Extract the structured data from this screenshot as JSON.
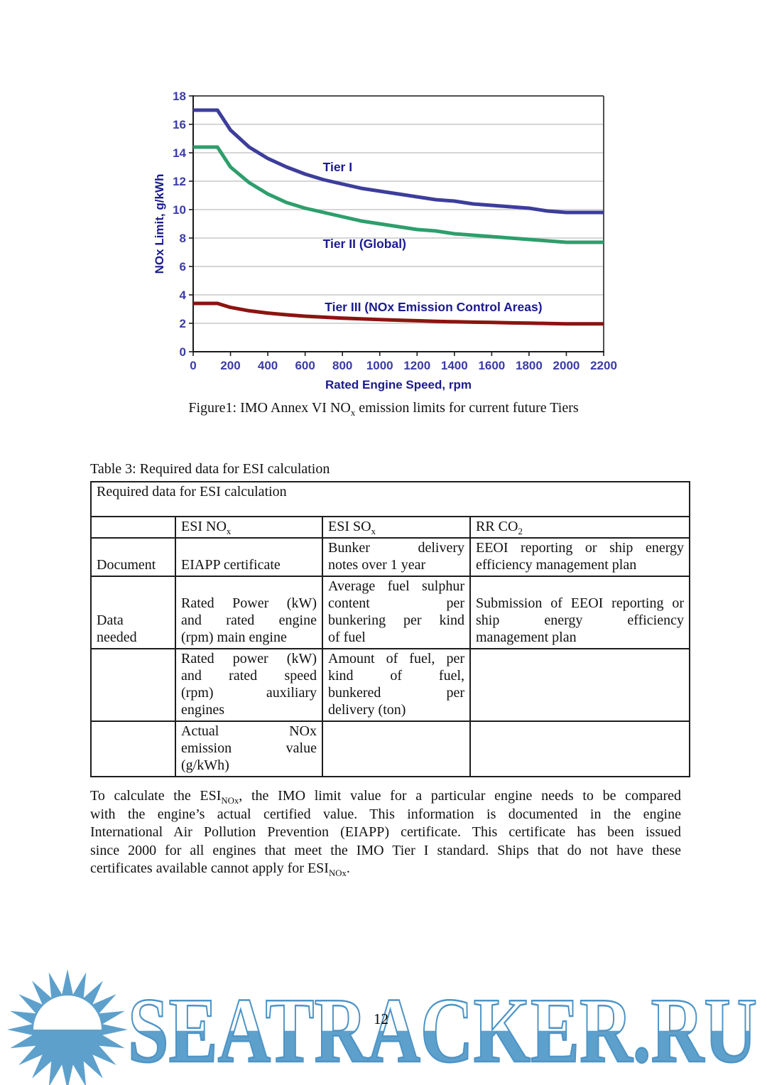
{
  "page": {
    "number": "12"
  },
  "figure": {
    "caption": {
      "pre": "Figure1: IMO Annex VI NO",
      "sub": "x",
      "post": " emission limits for current future Tiers"
    }
  },
  "chart_data": {
    "type": "line",
    "title": "",
    "xlabel": "Rated Engine Speed, rpm",
    "ylabel": "NOx Limit, g/kWh",
    "xlim": [
      0,
      2200
    ],
    "ylim": [
      0,
      18
    ],
    "x_ticks": [
      0,
      200,
      400,
      600,
      800,
      1000,
      1200,
      1400,
      1600,
      1800,
      2000,
      2200
    ],
    "y_ticks": [
      0,
      2,
      4,
      6,
      8,
      10,
      12,
      14,
      16,
      18
    ],
    "grid": "horizontal",
    "legend": "none",
    "series": [
      {
        "name": "Tier I",
        "color": "#3D3D9C",
        "points": [
          [
            0,
            17
          ],
          [
            130,
            17
          ],
          [
            200,
            15.6
          ],
          [
            300,
            14.4
          ],
          [
            400,
            13.6
          ],
          [
            500,
            13.0
          ],
          [
            600,
            12.5
          ],
          [
            700,
            12.1
          ],
          [
            800,
            11.8
          ],
          [
            900,
            11.5
          ],
          [
            1000,
            11.3
          ],
          [
            1100,
            11.1
          ],
          [
            1200,
            10.9
          ],
          [
            1300,
            10.7
          ],
          [
            1400,
            10.6
          ],
          [
            1500,
            10.4
          ],
          [
            1600,
            10.3
          ],
          [
            1700,
            10.2
          ],
          [
            1800,
            10.1
          ],
          [
            1900,
            9.9
          ],
          [
            2000,
            9.8
          ],
          [
            2200,
            9.8
          ]
        ]
      },
      {
        "name": "Tier II (Global)",
        "color": "#2E9E6C",
        "points": [
          [
            0,
            14.4
          ],
          [
            130,
            14.4
          ],
          [
            200,
            13.0
          ],
          [
            300,
            11.9
          ],
          [
            400,
            11.1
          ],
          [
            500,
            10.5
          ],
          [
            600,
            10.1
          ],
          [
            700,
            9.8
          ],
          [
            800,
            9.5
          ],
          [
            900,
            9.2
          ],
          [
            1000,
            9.0
          ],
          [
            1100,
            8.8
          ],
          [
            1200,
            8.6
          ],
          [
            1300,
            8.5
          ],
          [
            1400,
            8.3
          ],
          [
            1500,
            8.2
          ],
          [
            1600,
            8.1
          ],
          [
            1700,
            8.0
          ],
          [
            1800,
            7.9
          ],
          [
            1900,
            7.8
          ],
          [
            2000,
            7.7
          ],
          [
            2200,
            7.7
          ]
        ]
      },
      {
        "name": "Tier III (NOx Emission Control Areas)",
        "color": "#8B1410",
        "points": [
          [
            0,
            3.4
          ],
          [
            130,
            3.4
          ],
          [
            200,
            3.12
          ],
          [
            300,
            2.88
          ],
          [
            400,
            2.72
          ],
          [
            500,
            2.6
          ],
          [
            600,
            2.5
          ],
          [
            700,
            2.43
          ],
          [
            800,
            2.36
          ],
          [
            900,
            2.31
          ],
          [
            1000,
            2.26
          ],
          [
            1100,
            2.22
          ],
          [
            1200,
            2.18
          ],
          [
            1300,
            2.14
          ],
          [
            1400,
            2.11
          ],
          [
            1500,
            2.08
          ],
          [
            1600,
            2.06
          ],
          [
            1700,
            2.03
          ],
          [
            1800,
            2.01
          ],
          [
            1900,
            1.99
          ],
          [
            2000,
            1.96
          ],
          [
            2200,
            1.96
          ]
        ]
      }
    ],
    "annotations": [
      {
        "text": "Tier I",
        "x": 695,
        "y": 13.0
      },
      {
        "text": "Tier II (Global)",
        "x": 695,
        "y": 7.6
      },
      {
        "text": "Tier III (NOx Emission Control Areas)",
        "x": 705,
        "y": 3.15
      }
    ],
    "colors": {
      "axis_text": "#3B3BA6",
      "title_text": "#1B1B8F",
      "grid": "#C9C9C9",
      "border": "#505050",
      "axis": "#1a1a1a"
    }
  },
  "table": {
    "caption": "Table 3: Required data for ESI calculation",
    "title_row": "Required data for ESI calculation",
    "header": [
      {
        "pre": "",
        "sub": ""
      },
      {
        "pre": "ESI NO",
        "sub": "x"
      },
      {
        "pre": "ESI SO",
        "sub": "x"
      },
      {
        "pre": "RR CO",
        "sub": "2"
      }
    ],
    "rows": [
      {
        "c1": [
          "Document"
        ],
        "c2": [
          "EIAPP certificate"
        ],
        "c3": [
          "Bunker delivery",
          "notes over 1 year"
        ],
        "c4": [
          "EEOI reporting or ship energy",
          "efficiency management plan"
        ]
      },
      {
        "c1": [
          "Data",
          "needed"
        ],
        "c2": [
          "Rated Power (kW)",
          "and rated engine",
          "(rpm) main engine"
        ],
        "c3": [
          "Average fuel sulphur",
          "content per",
          "bunkering per kind",
          "of fuel"
        ],
        "c4": [
          "Submission of EEOI reporting or",
          "ship energy efficiency",
          "management plan"
        ]
      },
      {
        "c1": [],
        "c2": [
          "Rated power (kW)",
          "and rated speed",
          "(rpm) auxiliary",
          "engines"
        ],
        "c3": [
          "Amount of fuel, per",
          "kind of fuel,",
          "bunkered per",
          "delivery (ton)"
        ],
        "c4": []
      },
      {
        "c1": [],
        "c2": [
          "Actual NOx",
          "emission value",
          "(g/kWh)"
        ],
        "c3": [],
        "c4": []
      }
    ]
  },
  "paragraph": {
    "l1_pre": "To calculate the ESI",
    "l1_sub": "NOx",
    "l1_post": ", the IMO limit value for a particular engine needs to be compared",
    "l2": "with the engine’s actual certified value. This information is documented in the engine",
    "l3": "International Air Pollution Prevention (EIAPP) certificate. This certificate has been issued",
    "l4": "since 2000 for all engines that meet the IMO Tier I standard. Ships that do not have these",
    "l5_pre": "certificates available cannot apply for ESI",
    "l5_sub": "NOx",
    "l5_post": "."
  },
  "watermark": {
    "text": "SEATRACKER.RU",
    "fill_color": "#5EA0CC",
    "stroke_color": "#4E94C6",
    "icon": "sun-icon"
  }
}
